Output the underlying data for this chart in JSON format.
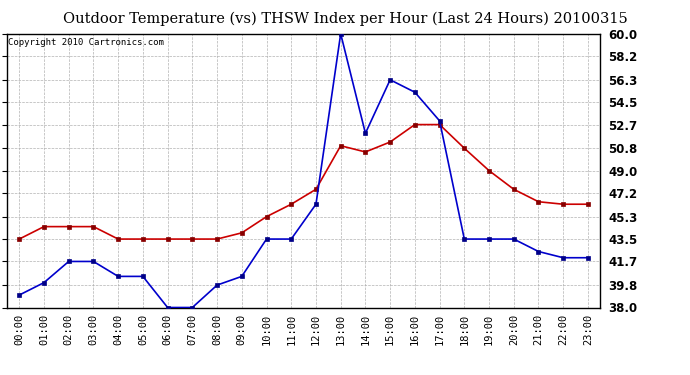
{
  "title": "Outdoor Temperature (vs) THSW Index per Hour (Last 24 Hours) 20100315",
  "copyright": "Copyright 2010 Cartronics.com",
  "hours": [
    "00:00",
    "01:00",
    "02:00",
    "03:00",
    "04:00",
    "05:00",
    "06:00",
    "07:00",
    "08:00",
    "09:00",
    "10:00",
    "11:00",
    "12:00",
    "13:00",
    "14:00",
    "15:00",
    "16:00",
    "17:00",
    "18:00",
    "19:00",
    "20:00",
    "21:00",
    "22:00",
    "23:00"
  ],
  "temp_red": [
    43.5,
    44.5,
    44.5,
    44.5,
    43.5,
    43.5,
    43.5,
    43.5,
    43.5,
    44.0,
    45.3,
    46.3,
    47.5,
    51.0,
    50.5,
    51.3,
    52.7,
    52.7,
    50.8,
    49.0,
    47.5,
    46.5,
    46.3,
    46.3
  ],
  "thsw_blue": [
    39.0,
    40.0,
    41.7,
    41.7,
    40.5,
    40.5,
    38.0,
    38.0,
    39.8,
    40.5,
    43.5,
    43.5,
    46.3,
    60.0,
    52.0,
    56.3,
    55.3,
    53.0,
    43.5,
    43.5,
    43.5,
    42.5,
    42.0,
    42.0
  ],
  "ylim": [
    38.0,
    60.0
  ],
  "yticks": [
    38.0,
    39.8,
    41.7,
    43.5,
    45.3,
    47.2,
    49.0,
    50.8,
    52.7,
    54.5,
    56.3,
    58.2,
    60.0
  ],
  "red_color": "#cc0000",
  "blue_color": "#0000cc",
  "bg_color": "#ffffff",
  "grid_color": "#aaaaaa",
  "title_fontsize": 10.5,
  "copyright_fontsize": 6.5,
  "tick_fontsize": 7.5,
  "ytick_fontsize": 8.5
}
